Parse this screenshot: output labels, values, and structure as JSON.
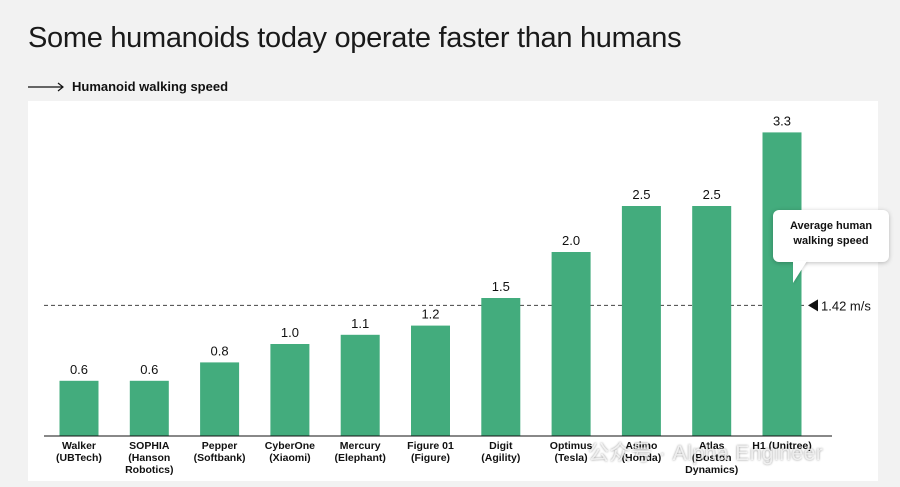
{
  "page": {
    "title": "Some humanoids today operate faster than humans",
    "subtitle": "Humanoid walking speed",
    "watermark": "公众号 · Alpha Engineer"
  },
  "callout": {
    "line1": "Average human",
    "line2": "walking speed"
  },
  "colors": {
    "bar": "#43ac7d",
    "background": "#f2f2f2",
    "panel": "#ffffff",
    "reference_line": "#444444"
  },
  "chart_data": {
    "type": "bar",
    "title": "Humanoid walking speed",
    "xlabel": "",
    "ylabel": "",
    "ylim": [
      0,
      3.5
    ],
    "grid": false,
    "categories": [
      [
        "Walker",
        "(UBTech)"
      ],
      [
        "SOPHIA",
        "(Hanson",
        "Robotics)"
      ],
      [
        "Pepper",
        "(Softbank)"
      ],
      [
        "CyberOne",
        "(Xiaomi)"
      ],
      [
        "Mercury",
        "(Elephant)"
      ],
      [
        "Figure 01",
        "(Figure)"
      ],
      [
        "Digit",
        "(Agility)"
      ],
      [
        "Optimus",
        "(Tesla)"
      ],
      [
        "Asimo",
        "(Honda)"
      ],
      [
        "Atlas",
        "(Boston",
        "Dynamics)"
      ],
      [
        "H1 (Unitree)"
      ]
    ],
    "values": [
      0.6,
      0.6,
      0.8,
      1.0,
      1.1,
      1.2,
      1.5,
      2.0,
      2.5,
      2.5,
      3.3
    ],
    "value_labels": [
      "0.6",
      "0.6",
      "0.8",
      "1.0",
      "1.1",
      "1.2",
      "1.5",
      "2.0",
      "2.5",
      "2.5",
      "3.3"
    ],
    "reference_line": {
      "value": 1.42,
      "label": "1.42 m/s",
      "style": "dashed"
    }
  }
}
